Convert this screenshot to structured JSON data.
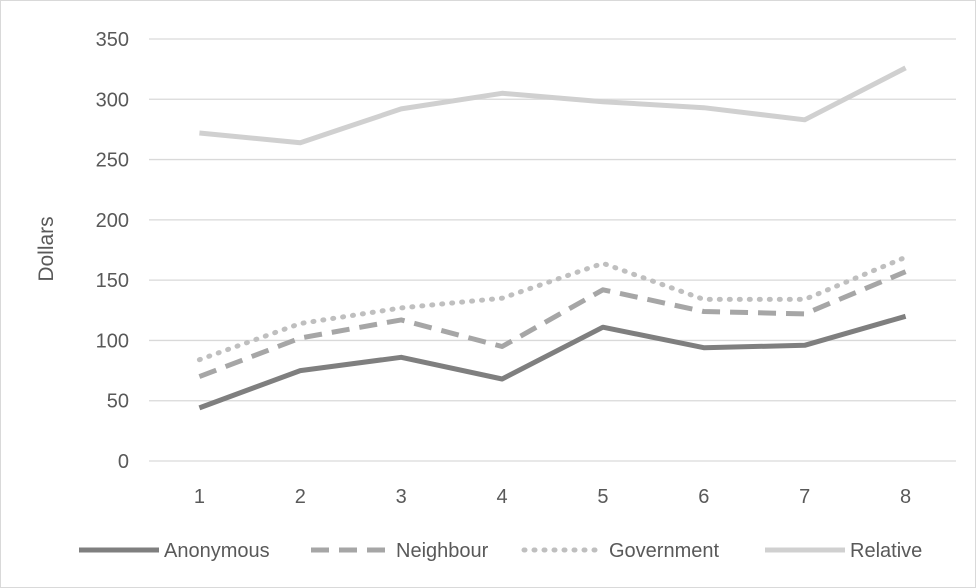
{
  "chart_data": {
    "type": "line",
    "title": "",
    "xlabel": "",
    "ylabel": "Dollars",
    "categories": [
      "1",
      "2",
      "3",
      "4",
      "5",
      "6",
      "7",
      "8"
    ],
    "ylim": [
      0,
      350
    ],
    "yticks": [
      0,
      50,
      100,
      150,
      200,
      250,
      300,
      350
    ],
    "grid": true,
    "legend_position": "bottom",
    "series": [
      {
        "name": "Anonymous",
        "values": [
          44,
          75,
          86,
          68,
          111,
          94,
          96,
          120
        ],
        "color": "#7f7f7f",
        "style": "solid"
      },
      {
        "name": "Neighbour",
        "values": [
          70,
          102,
          117,
          95,
          142,
          124,
          122,
          157
        ],
        "color": "#a6a6a6",
        "style": "dashed"
      },
      {
        "name": "Government",
        "values": [
          84,
          114,
          127,
          135,
          164,
          134,
          134,
          169
        ],
        "color": "#bfbfbf",
        "style": "dotted"
      },
      {
        "name": "Relative",
        "values": [
          272,
          264,
          292,
          305,
          298,
          293,
          283,
          326
        ],
        "color": "#d0d0d0",
        "style": "solid"
      }
    ]
  }
}
